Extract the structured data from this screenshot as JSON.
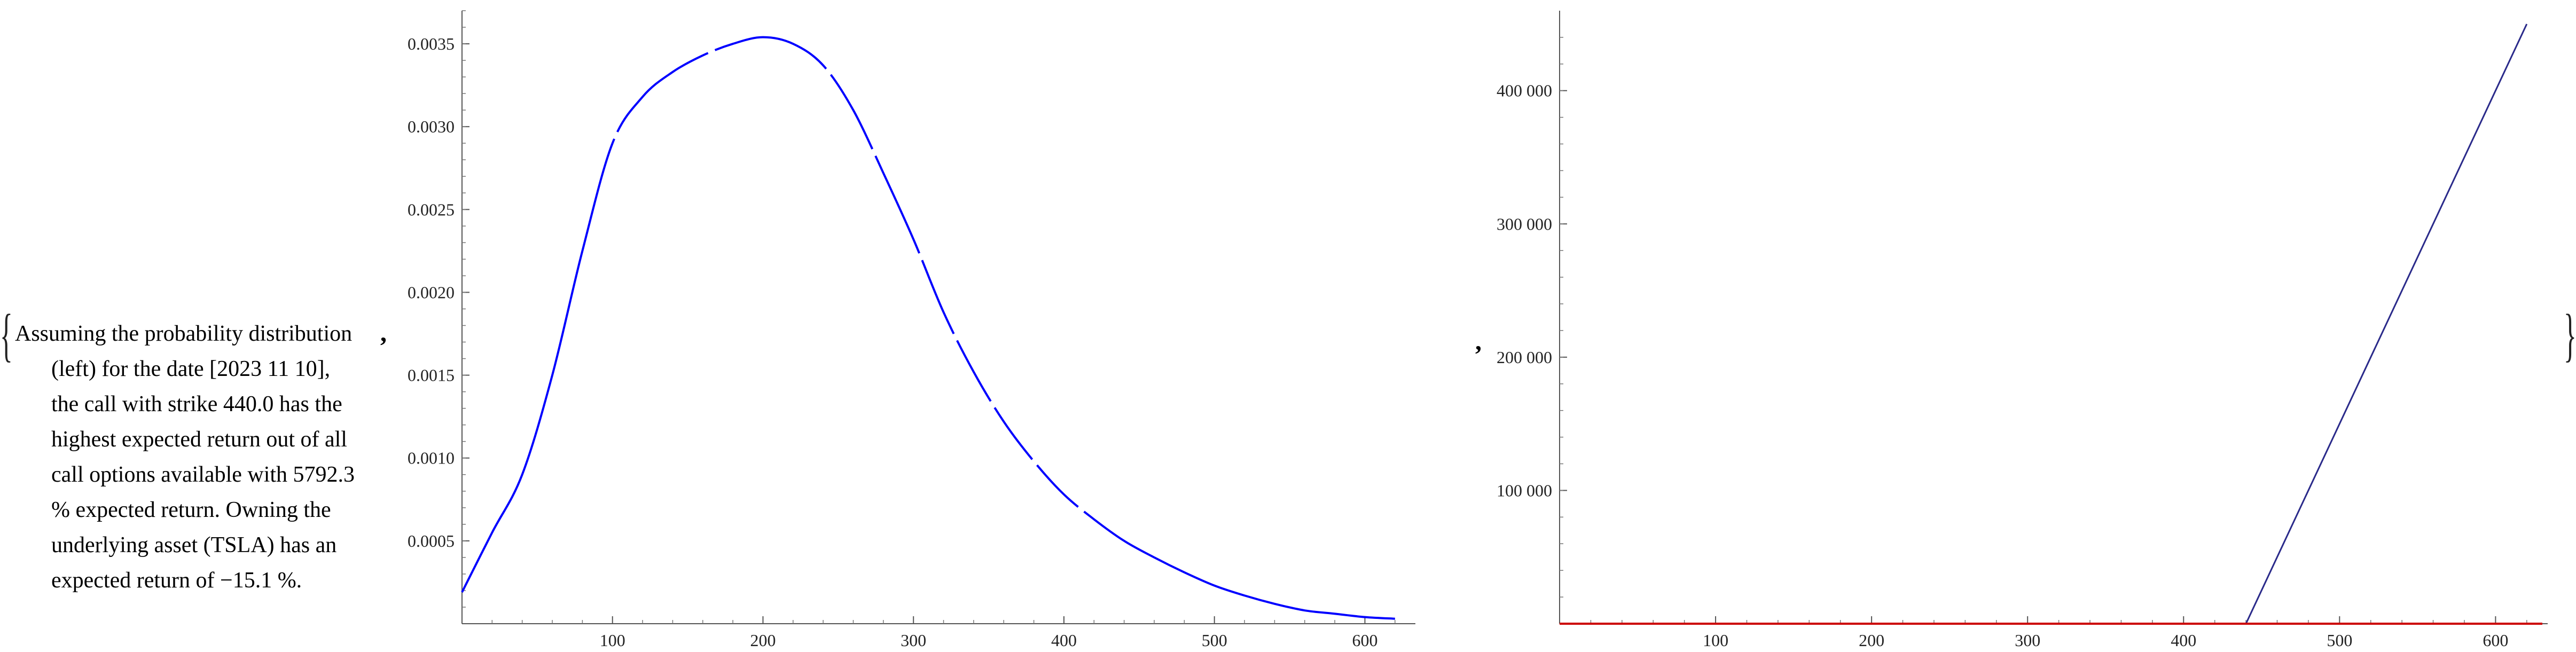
{
  "open_brace": "{",
  "close_brace": "}",
  "separator": ",",
  "description": {
    "first_line": "Assuming the probability distribution",
    "rest_lines": [
      "(left) for the date [2023 11 10],",
      "the call with strike 440.0 has the",
      "highest expected return out of all",
      "call options available with 5792.3",
      "% expected return. Owning the",
      "underlying asset (TSLA) has an",
      "expected return of −15.1 %."
    ]
  },
  "chart_data": [
    {
      "type": "line",
      "title": "",
      "xlabel": "",
      "ylabel": "",
      "xlim": [
        0,
        630
      ],
      "ylim": [
        0,
        0.0037
      ],
      "x_ticks": [
        100,
        200,
        300,
        400,
        500,
        600
      ],
      "y_ticks": [
        0.0005,
        0.001,
        0.0015,
        0.002,
        0.0025,
        0.003,
        0.0035
      ],
      "x_tick_labels": [
        "100",
        "200",
        "300",
        "400",
        "500",
        "600"
      ],
      "y_tick_labels": [
        "0.0005",
        "0.0010",
        "0.0015",
        "0.0020",
        "0.0025",
        "0.0030",
        "0.0035"
      ],
      "series": [
        {
          "color": "#0000ff",
          "x": [
            0,
            20,
            40,
            60,
            80,
            100,
            120,
            140,
            160,
            180,
            200,
            220,
            240,
            260,
            280,
            300,
            320,
            340,
            360,
            380,
            400,
            420,
            440,
            460,
            480,
            500,
            520,
            540,
            560,
            580,
            600,
            620
          ],
          "y": [
            0.00019,
            0.00055,
            0.0009,
            0.0015,
            0.00225,
            0.0029,
            0.00318,
            0.00333,
            0.00343,
            0.0035,
            0.00354,
            0.0035,
            0.00337,
            0.0031,
            0.00272,
            0.00232,
            0.00188,
            0.00152,
            0.00122,
            0.00098,
            0.00078,
            0.00063,
            0.0005,
            0.0004,
            0.00031,
            0.00023,
            0.00017,
            0.00012,
            8e-05,
            6e-05,
            4e-05,
            3e-05
          ]
        }
      ]
    },
    {
      "type": "line",
      "title": "",
      "xlabel": "",
      "ylabel": "",
      "xlim": [
        0,
        630
      ],
      "ylim": [
        0,
        460000
      ],
      "x_ticks": [
        100,
        200,
        300,
        400,
        500,
        600
      ],
      "y_ticks": [
        100000,
        200000,
        300000,
        400000
      ],
      "x_tick_labels": [
        "100",
        "200",
        "300",
        "400",
        "500",
        "600"
      ],
      "y_tick_labels": [
        "100 000",
        "200 000",
        "300 000",
        "400 000"
      ],
      "series": [
        {
          "color": "#2a2a8a",
          "x": [
            0,
            440,
            620
          ],
          "y": [
            0,
            0,
            450000
          ]
        },
        {
          "color": "#cc0000",
          "x": [
            0,
            630
          ],
          "y": [
            0,
            0
          ]
        }
      ]
    }
  ]
}
